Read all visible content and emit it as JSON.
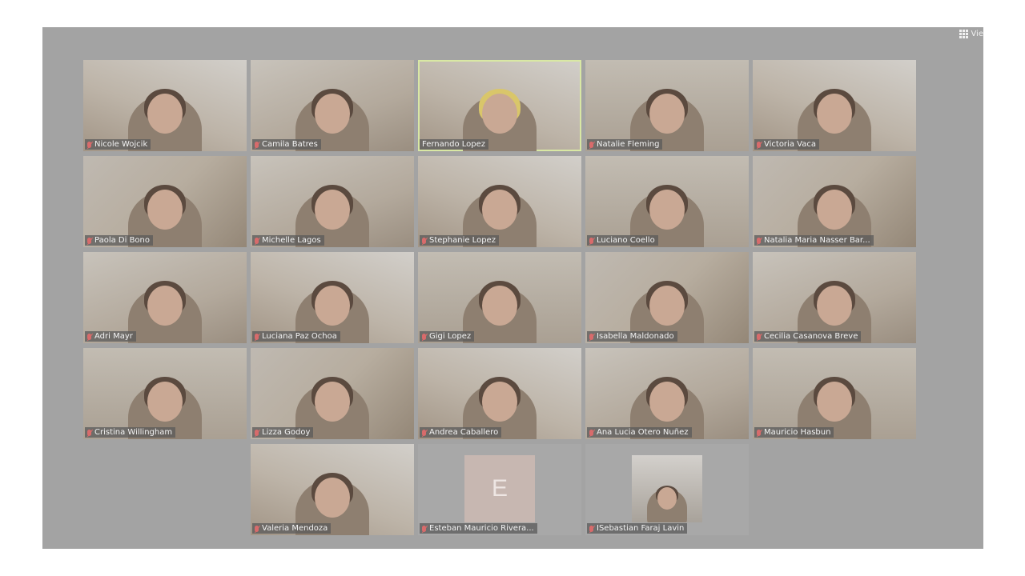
{
  "toolbar": {
    "view_label": "Vie"
  },
  "participants": [
    {
      "name": "Nicole Wojcik",
      "muted": true
    },
    {
      "name": "Camila Batres",
      "muted": true
    },
    {
      "name": "Fernando Lopez",
      "muted": false,
      "active_speaker": true
    },
    {
      "name": "Natalie Fleming",
      "muted": true
    },
    {
      "name": "Victoria Vaca",
      "muted": true
    },
    {
      "name": "Paola Di Bono",
      "muted": true
    },
    {
      "name": "Michelle Lagos",
      "muted": true
    },
    {
      "name": "Stephanie Lopez",
      "muted": true
    },
    {
      "name": "Luciano Coello",
      "muted": true
    },
    {
      "name": "Natalia Maria Nasser Bar...",
      "muted": true
    },
    {
      "name": "Adri Mayr",
      "muted": true
    },
    {
      "name": "Luciana Paz Ochoa",
      "muted": true
    },
    {
      "name": "Gigi Lopez",
      "muted": true
    },
    {
      "name": "Isabella Maldonado",
      "muted": true
    },
    {
      "name": "Cecilia Casanova Breve",
      "muted": true
    },
    {
      "name": "Cristina Willingham",
      "muted": true
    },
    {
      "name": "Lizza Godoy",
      "muted": true
    },
    {
      "name": "Andrea Caballero",
      "muted": true
    },
    {
      "name": "Ana Lucia Otero Nuñez",
      "muted": true
    },
    {
      "name": "Mauricio Hasbun",
      "muted": true
    },
    {
      "name": "Valeria Mendoza",
      "muted": true
    },
    {
      "name": "Esteban Mauricio Rivera...",
      "muted": true,
      "avatar_letter": "E"
    },
    {
      "name": "ISebastian Faraj Lavin",
      "muted": true
    }
  ]
}
